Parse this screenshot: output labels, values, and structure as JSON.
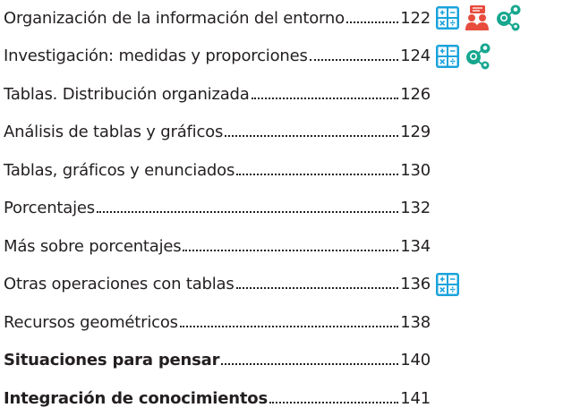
{
  "toc": {
    "entries": [
      {
        "title": "Organización de la información del entorno",
        "page": "122"
      },
      {
        "title": "Investigación: medidas y proporciones",
        "page": "124"
      },
      {
        "title": "Tablas. Distribución organizada",
        "page": "126"
      },
      {
        "title": "Análisis de tablas y gráficos",
        "page": "129"
      },
      {
        "title": "Tablas, gráficos y enunciados",
        "page": "130"
      },
      {
        "title": "Porcentajes",
        "page": "132"
      },
      {
        "title": "Más sobre porcentajes",
        "page": "134"
      },
      {
        "title": "Otras operaciones con tablas",
        "page": "136"
      },
      {
        "title": "Recursos geométricos",
        "page": "138"
      },
      {
        "title": "Situaciones para pensar",
        "page": "140"
      },
      {
        "title": "Integración de conocimientos",
        "page": "141"
      }
    ]
  }
}
